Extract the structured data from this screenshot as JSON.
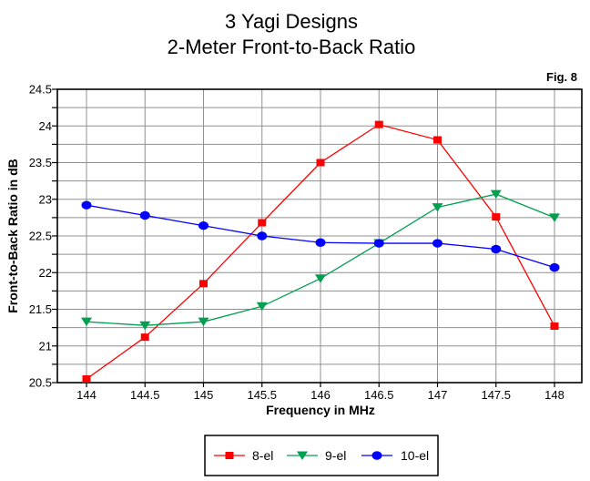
{
  "header": {
    "title_line1": "3 Yagi Designs",
    "title_line2": "2-Meter Front-to-Back Ratio",
    "fig_label": "Fig. 8"
  },
  "chart_data": {
    "type": "line",
    "title": "3 Yagi Designs",
    "subtitle": "2-Meter Front-to-Back Ratio",
    "xlabel": "Frequency in MHz",
    "ylabel": "Front-to-Back Ratio in dB",
    "x": [
      144,
      144.5,
      145,
      145.5,
      146,
      146.5,
      147,
      147.5,
      148
    ],
    "x_tick_labels": [
      "144",
      "144.5",
      "145",
      "145.5",
      "146",
      "146.5",
      "147",
      "147.5",
      "148"
    ],
    "xlim": [
      143.75,
      148.25
    ],
    "y_ticks": [
      20.5,
      21,
      21.5,
      22,
      22.5,
      23,
      23.5,
      24,
      24.5
    ],
    "y_tick_labels": [
      "20.5",
      "21",
      "21.5",
      "22",
      "22.5",
      "23",
      "23.5",
      "24",
      "24.5"
    ],
    "ylim": [
      20.5,
      24.5
    ],
    "y_minor_step": 0.25,
    "grid": true,
    "grid_color": "#909090",
    "legend_position": "bottom",
    "series": [
      {
        "name": "8-el",
        "marker": "square",
        "color": "#ff0000",
        "values": [
          20.55,
          21.12,
          21.85,
          22.68,
          23.5,
          24.02,
          23.81,
          22.76,
          21.27
        ]
      },
      {
        "name": "9-el",
        "marker": "triangle-down",
        "color": "#00a050",
        "values": [
          21.33,
          21.28,
          21.33,
          21.54,
          21.92,
          22.4,
          22.89,
          23.07,
          22.75
        ]
      },
      {
        "name": "10-el",
        "marker": "circle",
        "color": "#0000ff",
        "values": [
          22.92,
          22.78,
          22.64,
          22.5,
          22.41,
          22.4,
          22.4,
          22.32,
          22.07
        ]
      }
    ]
  }
}
